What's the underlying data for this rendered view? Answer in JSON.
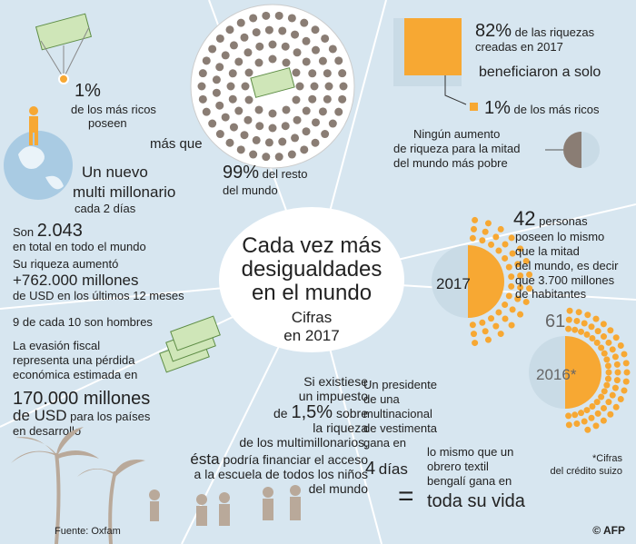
{
  "center": {
    "title": [
      "Cada vez más",
      "desigualdades",
      "en el mundo"
    ],
    "subtitle": [
      "Cifras",
      "en 2017"
    ]
  },
  "top_left": {
    "pct_rich": "1%",
    "rich_lines": [
      "de los más ricos",
      "poseen"
    ],
    "more_than": "más que",
    "pct_rest": "99%",
    "rest_lines": [
      "del resto",
      "del mundo"
    ]
  },
  "top_right": {
    "pct_wealth": "82%",
    "wealth_lines": [
      "de las riquezas",
      "creadas en 2017"
    ],
    "benefited": "beneficiaron a solo",
    "pct_rich": "1%",
    "rich_label": "de los más ricos"
  },
  "poor": {
    "lines": [
      "Ningún aumento",
      "de riqueza para la mitad",
      "del mundo más pobre"
    ]
  },
  "billionaires": {
    "headline": [
      "Un nuevo",
      "multi millonario"
    ],
    "every": "cada 2 días",
    "total_prefix": "Son",
    "total": "2.043",
    "total_suffix": "en total en todo el mundo",
    "increase_label": "Su riqueza aumentó",
    "increase": "+762.000",
    "increase_unit": "millones",
    "increase_suffix": "de USD en los últimos 12 meses",
    "men": "9 de cada 10 son hombres"
  },
  "tax_evasion": {
    "lines": [
      "La evasión fiscal",
      "representa una pérdida",
      "económica estimada en"
    ],
    "amount": "170.000",
    "amount_unit": "millones",
    "currency": "de USD",
    "currency_suffix": "para los países",
    "last": "en desarrollo"
  },
  "richest": {
    "count_2017": 42,
    "count_2017_label": "personas",
    "lines": [
      "poseen lo mismo",
      "que la mitad",
      "del mundo, es decir",
      "que 3.700 millones",
      "de habitantes"
    ],
    "year_2017": "2017",
    "count_2016": 61,
    "year_2016": "2016*",
    "note": [
      "*Cifras",
      "del crédito suizo"
    ]
  },
  "tax": {
    "lines_a": [
      "Si existiese",
      "un impuesto"
    ],
    "de": "de",
    "rate": "1,5%",
    "sobre": "sobre",
    "lines_b": [
      "la riqueza",
      "de los multimillonarios,"
    ],
    "esta": "ésta",
    "lines_c": [
      "podría financiar el acceso",
      "a la escuela de todos los niños",
      "del mundo"
    ]
  },
  "ceo": {
    "lines": [
      "Un presidente",
      "de una",
      "multinacional",
      "de vestimenta",
      "gana en"
    ],
    "days": "4",
    "days_unit": "días",
    "equals": "=",
    "worker": [
      "lo mismo que un",
      "obrero textil",
      "bengalí gana en"
    ],
    "lifetime": "toda su vida"
  },
  "footer": {
    "source": "Fuente: Oxfam",
    "credit": "© AFP"
  }
}
